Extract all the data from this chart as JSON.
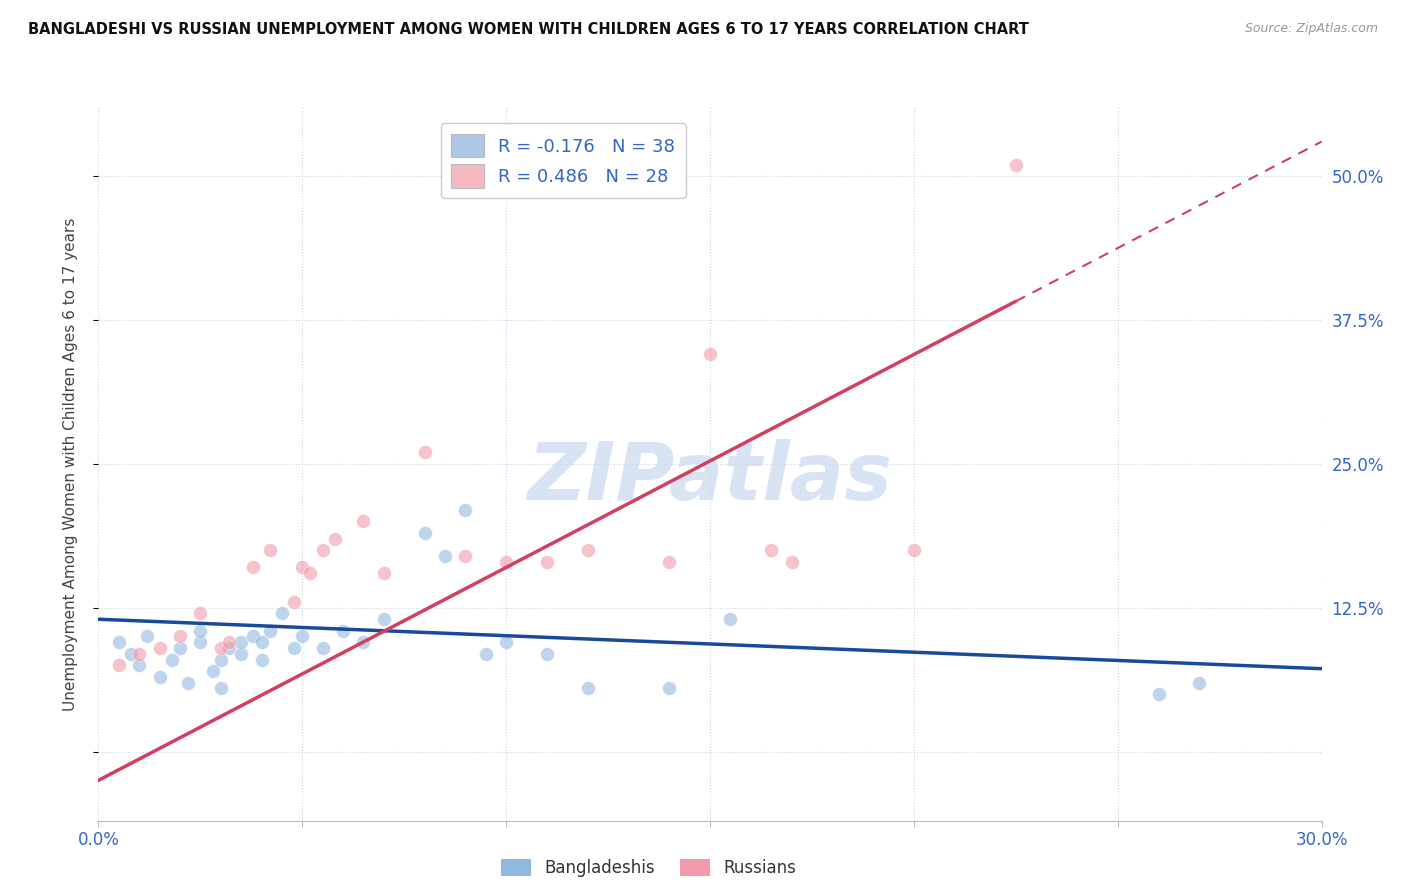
{
  "title": "BANGLADESHI VS RUSSIAN UNEMPLOYMENT AMONG WOMEN WITH CHILDREN AGES 6 TO 17 YEARS CORRELATION CHART",
  "source": "Source: ZipAtlas.com",
  "ylabel": "Unemployment Among Women with Children Ages 6 to 17 years",
  "xlim": [
    0.0,
    0.3
  ],
  "ylim": [
    -0.06,
    0.56
  ],
  "xticks": [
    0.0,
    0.05,
    0.1,
    0.15,
    0.2,
    0.25,
    0.3
  ],
  "yticks_right": [
    0.0,
    0.125,
    0.25,
    0.375,
    0.5
  ],
  "yticklabels_right": [
    "",
    "12.5%",
    "25.0%",
    "37.5%",
    "50.0%"
  ],
  "legend1_label": "R = -0.176   N = 38",
  "legend2_label": "R = 0.486   N = 28",
  "legend_color1": "#aec6e8",
  "legend_color2": "#f4b8c1",
  "label_color": "#3366cc",
  "background_color": "#ffffff",
  "grid_color": "#c8d4e8",
  "watermark": "ZIPatlas",
  "watermark_color": "#c8d8f0",
  "blue_scatter_color": "#93b8e0",
  "pink_scatter_color": "#f09aaa",
  "blue_line_color": "#1a4a9a",
  "pink_line_color": "#d04060",
  "scatter_size": 100,
  "blue_x": [
    0.005,
    0.008,
    0.01,
    0.012,
    0.015,
    0.018,
    0.02,
    0.022,
    0.025,
    0.025,
    0.028,
    0.03,
    0.03,
    0.032,
    0.035,
    0.035,
    0.038,
    0.04,
    0.04,
    0.042,
    0.045,
    0.048,
    0.05,
    0.055,
    0.06,
    0.065,
    0.07,
    0.08,
    0.085,
    0.09,
    0.095,
    0.1,
    0.11,
    0.12,
    0.14,
    0.155,
    0.26,
    0.27
  ],
  "blue_y": [
    0.095,
    0.085,
    0.075,
    0.1,
    0.065,
    0.08,
    0.09,
    0.06,
    0.095,
    0.105,
    0.07,
    0.055,
    0.08,
    0.09,
    0.085,
    0.095,
    0.1,
    0.08,
    0.095,
    0.105,
    0.12,
    0.09,
    0.1,
    0.09,
    0.105,
    0.095,
    0.115,
    0.19,
    0.17,
    0.21,
    0.085,
    0.095,
    0.085,
    0.055,
    0.055,
    0.115,
    0.05,
    0.06
  ],
  "pink_x": [
    0.005,
    0.01,
    0.015,
    0.02,
    0.025,
    0.03,
    0.032,
    0.038,
    0.042,
    0.048,
    0.05,
    0.052,
    0.055,
    0.058,
    0.065,
    0.07,
    0.08,
    0.09,
    0.1,
    0.105,
    0.11,
    0.12,
    0.14,
    0.15,
    0.165,
    0.17,
    0.2,
    0.225
  ],
  "pink_y": [
    0.075,
    0.085,
    0.09,
    0.1,
    0.12,
    0.09,
    0.095,
    0.16,
    0.175,
    0.13,
    0.16,
    0.155,
    0.175,
    0.185,
    0.2,
    0.155,
    0.26,
    0.17,
    0.165,
    0.49,
    0.165,
    0.175,
    0.165,
    0.345,
    0.175,
    0.165,
    0.175,
    0.51
  ],
  "bottom_legend_labels": [
    "Bangladeshis",
    "Russians"
  ],
  "blue_line_x0": 0.0,
  "blue_line_x1": 0.3,
  "blue_line_y0": 0.115,
  "blue_line_y1": 0.072,
  "pink_line_x0": 0.0,
  "pink_line_x1": 0.3,
  "pink_line_y0": -0.025,
  "pink_line_y1": 0.53
}
